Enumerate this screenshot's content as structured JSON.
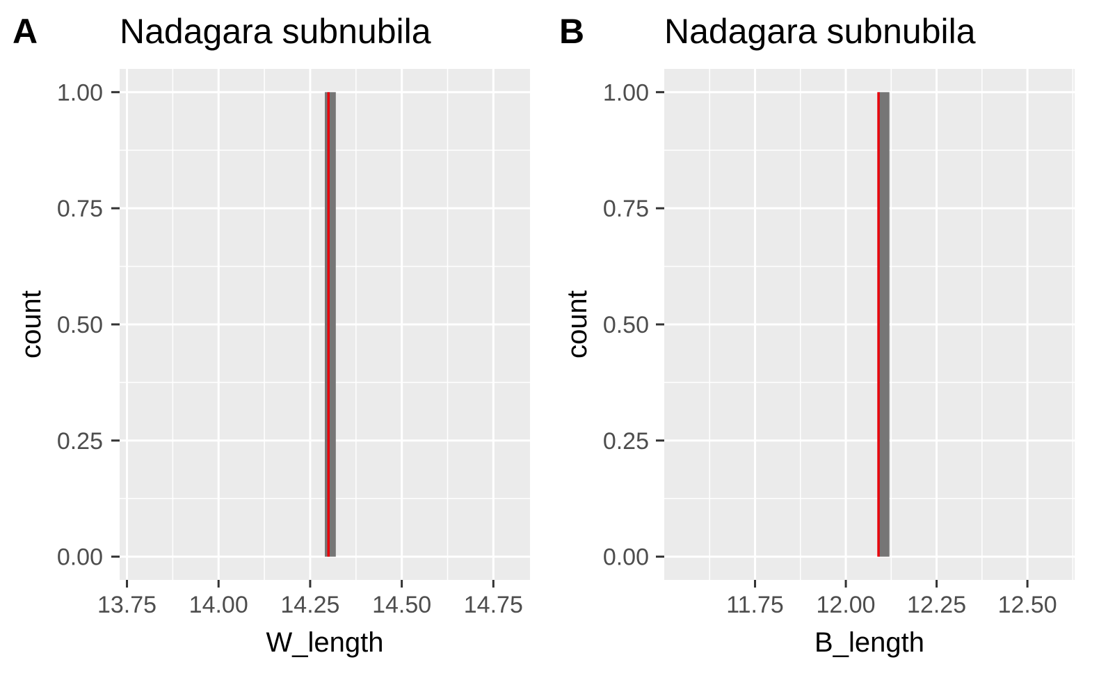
{
  "chart_data": [
    {
      "type": "bar",
      "panel_tag": "A",
      "title": "Nadagara subnubila",
      "xlabel": "W_length",
      "ylabel": "count",
      "xlim": [
        13.73,
        14.85
      ],
      "ylim": [
        -0.05,
        1.05
      ],
      "x_ticks": [
        13.75,
        14.0,
        14.25,
        14.5,
        14.75
      ],
      "x_tick_labels": [
        "13.75",
        "14.00",
        "14.25",
        "14.50",
        "14.75"
      ],
      "y_ticks": [
        0,
        0.25,
        0.5,
        0.75,
        1
      ],
      "y_tick_labels": [
        "0.00",
        "0.25",
        "0.50",
        "0.75",
        "1.00"
      ],
      "bins": [
        {
          "x0": 14.29,
          "x1": 14.32,
          "count": 1
        }
      ],
      "mean_line": 14.3,
      "grid": true,
      "colors": {
        "panel_bg": "#ebebeb",
        "grid": "#ffffff",
        "bar": "#767676",
        "mean_line": "#e8000b"
      }
    },
    {
      "type": "bar",
      "panel_tag": "B",
      "title": "Nadagara subnubila",
      "xlabel": "B_length",
      "ylabel": "count",
      "xlim": [
        11.5,
        12.63
      ],
      "ylim": [
        -0.05,
        1.05
      ],
      "x_ticks": [
        11.75,
        12.0,
        12.25,
        12.5
      ],
      "x_tick_labels": [
        "11.75",
        "12.00",
        "12.25",
        "12.50"
      ],
      "y_ticks": [
        0,
        0.25,
        0.5,
        0.75,
        1
      ],
      "y_tick_labels": [
        "0.00",
        "0.25",
        "0.50",
        "0.75",
        "1.00"
      ],
      "bins": [
        {
          "x0": 12.09,
          "x1": 12.12,
          "count": 1
        }
      ],
      "mean_line": 12.09,
      "grid": true,
      "colors": {
        "panel_bg": "#ebebeb",
        "grid": "#ffffff",
        "bar": "#767676",
        "mean_line": "#e8000b"
      }
    }
  ]
}
